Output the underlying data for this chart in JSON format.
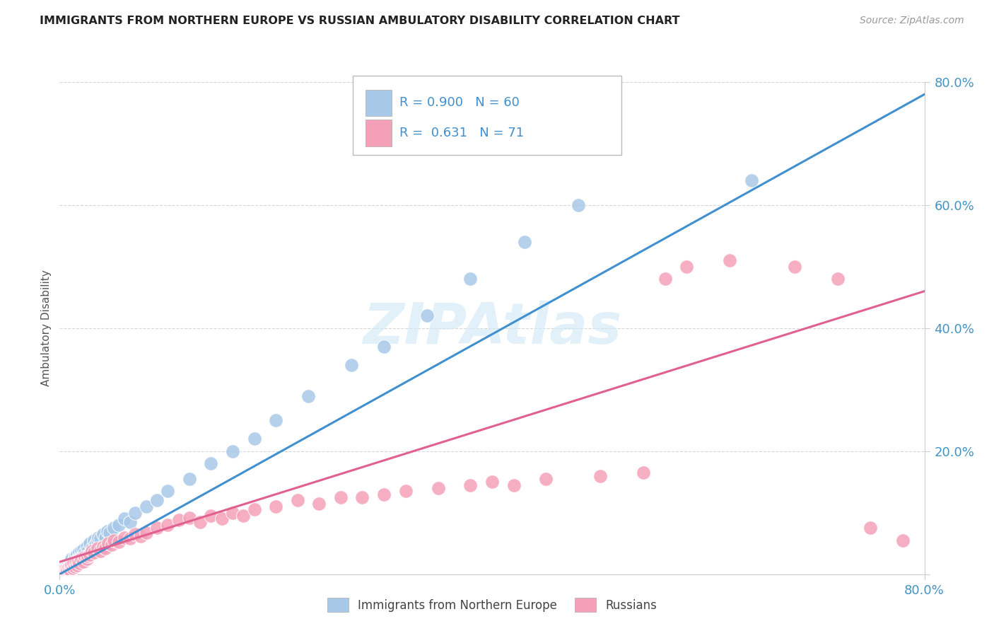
{
  "title": "IMMIGRANTS FROM NORTHERN EUROPE VS RUSSIAN AMBULATORY DISABILITY CORRELATION CHART",
  "source": "Source: ZipAtlas.com",
  "ylabel": "Ambulatory Disability",
  "legend_label1": "Immigrants from Northern Europe",
  "legend_label2": "Russians",
  "r1": "0.900",
  "n1": "60",
  "r2": "0.631",
  "n2": "71",
  "color_blue": "#a8c8e8",
  "color_pink": "#f4a0b8",
  "color_blue_line": "#4090d0",
  "color_pink_line": "#e06090",
  "blue_scatter": [
    [
      0.002,
      0.005
    ],
    [
      0.003,
      0.008
    ],
    [
      0.004,
      0.005
    ],
    [
      0.005,
      0.01
    ],
    [
      0.005,
      0.003
    ],
    [
      0.006,
      0.008
    ],
    [
      0.007,
      0.012
    ],
    [
      0.007,
      0.005
    ],
    [
      0.008,
      0.01
    ],
    [
      0.009,
      0.015
    ],
    [
      0.01,
      0.02
    ],
    [
      0.01,
      0.008
    ],
    [
      0.011,
      0.025
    ],
    [
      0.012,
      0.018
    ],
    [
      0.013,
      0.022
    ],
    [
      0.014,
      0.028
    ],
    [
      0.015,
      0.03
    ],
    [
      0.015,
      0.015
    ],
    [
      0.016,
      0.032
    ],
    [
      0.017,
      0.025
    ],
    [
      0.018,
      0.035
    ],
    [
      0.019,
      0.028
    ],
    [
      0.02,
      0.038
    ],
    [
      0.021,
      0.03
    ],
    [
      0.022,
      0.04
    ],
    [
      0.023,
      0.035
    ],
    [
      0.025,
      0.045
    ],
    [
      0.026,
      0.038
    ],
    [
      0.028,
      0.05
    ],
    [
      0.03,
      0.042
    ],
    [
      0.032,
      0.055
    ],
    [
      0.033,
      0.048
    ],
    [
      0.035,
      0.055
    ],
    [
      0.036,
      0.06
    ],
    [
      0.038,
      0.058
    ],
    [
      0.04,
      0.065
    ],
    [
      0.042,
      0.06
    ],
    [
      0.044,
      0.07
    ],
    [
      0.046,
      0.068
    ],
    [
      0.05,
      0.075
    ],
    [
      0.055,
      0.08
    ],
    [
      0.06,
      0.09
    ],
    [
      0.065,
      0.085
    ],
    [
      0.07,
      0.1
    ],
    [
      0.08,
      0.11
    ],
    [
      0.09,
      0.12
    ],
    [
      0.1,
      0.135
    ],
    [
      0.12,
      0.155
    ],
    [
      0.14,
      0.18
    ],
    [
      0.16,
      0.2
    ],
    [
      0.18,
      0.22
    ],
    [
      0.2,
      0.25
    ],
    [
      0.23,
      0.29
    ],
    [
      0.27,
      0.34
    ],
    [
      0.3,
      0.37
    ],
    [
      0.34,
      0.42
    ],
    [
      0.38,
      0.48
    ],
    [
      0.43,
      0.54
    ],
    [
      0.48,
      0.6
    ],
    [
      0.64,
      0.64
    ]
  ],
  "pink_scatter": [
    [
      0.002,
      0.003
    ],
    [
      0.003,
      0.005
    ],
    [
      0.004,
      0.002
    ],
    [
      0.005,
      0.007
    ],
    [
      0.005,
      0.003
    ],
    [
      0.006,
      0.005
    ],
    [
      0.007,
      0.008
    ],
    [
      0.008,
      0.01
    ],
    [
      0.009,
      0.007
    ],
    [
      0.01,
      0.012
    ],
    [
      0.01,
      0.005
    ],
    [
      0.011,
      0.015
    ],
    [
      0.012,
      0.01
    ],
    [
      0.013,
      0.018
    ],
    [
      0.014,
      0.012
    ],
    [
      0.015,
      0.02
    ],
    [
      0.016,
      0.015
    ],
    [
      0.017,
      0.022
    ],
    [
      0.018,
      0.018
    ],
    [
      0.02,
      0.025
    ],
    [
      0.022,
      0.02
    ],
    [
      0.023,
      0.028
    ],
    [
      0.025,
      0.025
    ],
    [
      0.026,
      0.03
    ],
    [
      0.028,
      0.032
    ],
    [
      0.03,
      0.038
    ],
    [
      0.032,
      0.035
    ],
    [
      0.035,
      0.042
    ],
    [
      0.038,
      0.038
    ],
    [
      0.04,
      0.045
    ],
    [
      0.042,
      0.042
    ],
    [
      0.045,
      0.05
    ],
    [
      0.048,
      0.048
    ],
    [
      0.05,
      0.055
    ],
    [
      0.055,
      0.052
    ],
    [
      0.06,
      0.06
    ],
    [
      0.065,
      0.058
    ],
    [
      0.07,
      0.065
    ],
    [
      0.075,
      0.062
    ],
    [
      0.08,
      0.068
    ],
    [
      0.09,
      0.075
    ],
    [
      0.1,
      0.08
    ],
    [
      0.11,
      0.088
    ],
    [
      0.12,
      0.092
    ],
    [
      0.13,
      0.085
    ],
    [
      0.14,
      0.095
    ],
    [
      0.15,
      0.09
    ],
    [
      0.16,
      0.1
    ],
    [
      0.17,
      0.095
    ],
    [
      0.18,
      0.105
    ],
    [
      0.2,
      0.11
    ],
    [
      0.22,
      0.12
    ],
    [
      0.24,
      0.115
    ],
    [
      0.26,
      0.125
    ],
    [
      0.28,
      0.125
    ],
    [
      0.3,
      0.13
    ],
    [
      0.32,
      0.135
    ],
    [
      0.35,
      0.14
    ],
    [
      0.38,
      0.145
    ],
    [
      0.4,
      0.15
    ],
    [
      0.42,
      0.145
    ],
    [
      0.45,
      0.155
    ],
    [
      0.5,
      0.16
    ],
    [
      0.54,
      0.165
    ],
    [
      0.56,
      0.48
    ],
    [
      0.58,
      0.5
    ],
    [
      0.62,
      0.51
    ],
    [
      0.68,
      0.5
    ],
    [
      0.72,
      0.48
    ],
    [
      0.75,
      0.075
    ],
    [
      0.78,
      0.055
    ]
  ],
  "blue_trend_x": [
    0.0,
    0.8
  ],
  "blue_trend_y": [
    0.0,
    0.78
  ],
  "pink_trend_x": [
    0.0,
    0.8
  ],
  "pink_trend_y": [
    0.02,
    0.46
  ],
  "xlim": [
    0.0,
    0.8
  ],
  "ylim": [
    0.0,
    0.8
  ],
  "yticks": [
    0.0,
    0.2,
    0.4,
    0.6,
    0.8
  ],
  "ytick_labels": [
    "",
    "20.0%",
    "40.0%",
    "60.0%",
    "80.0%"
  ],
  "xtick_vals": [
    0.0,
    0.8
  ],
  "xtick_labels": [
    "0.0%",
    "80.0%"
  ],
  "grid_color": "#cccccc",
  "tick_color": "#4393c3",
  "bg_color": "#ffffff",
  "watermark_text": "ZIPAtlas",
  "watermark_color": "#d0e8f5"
}
